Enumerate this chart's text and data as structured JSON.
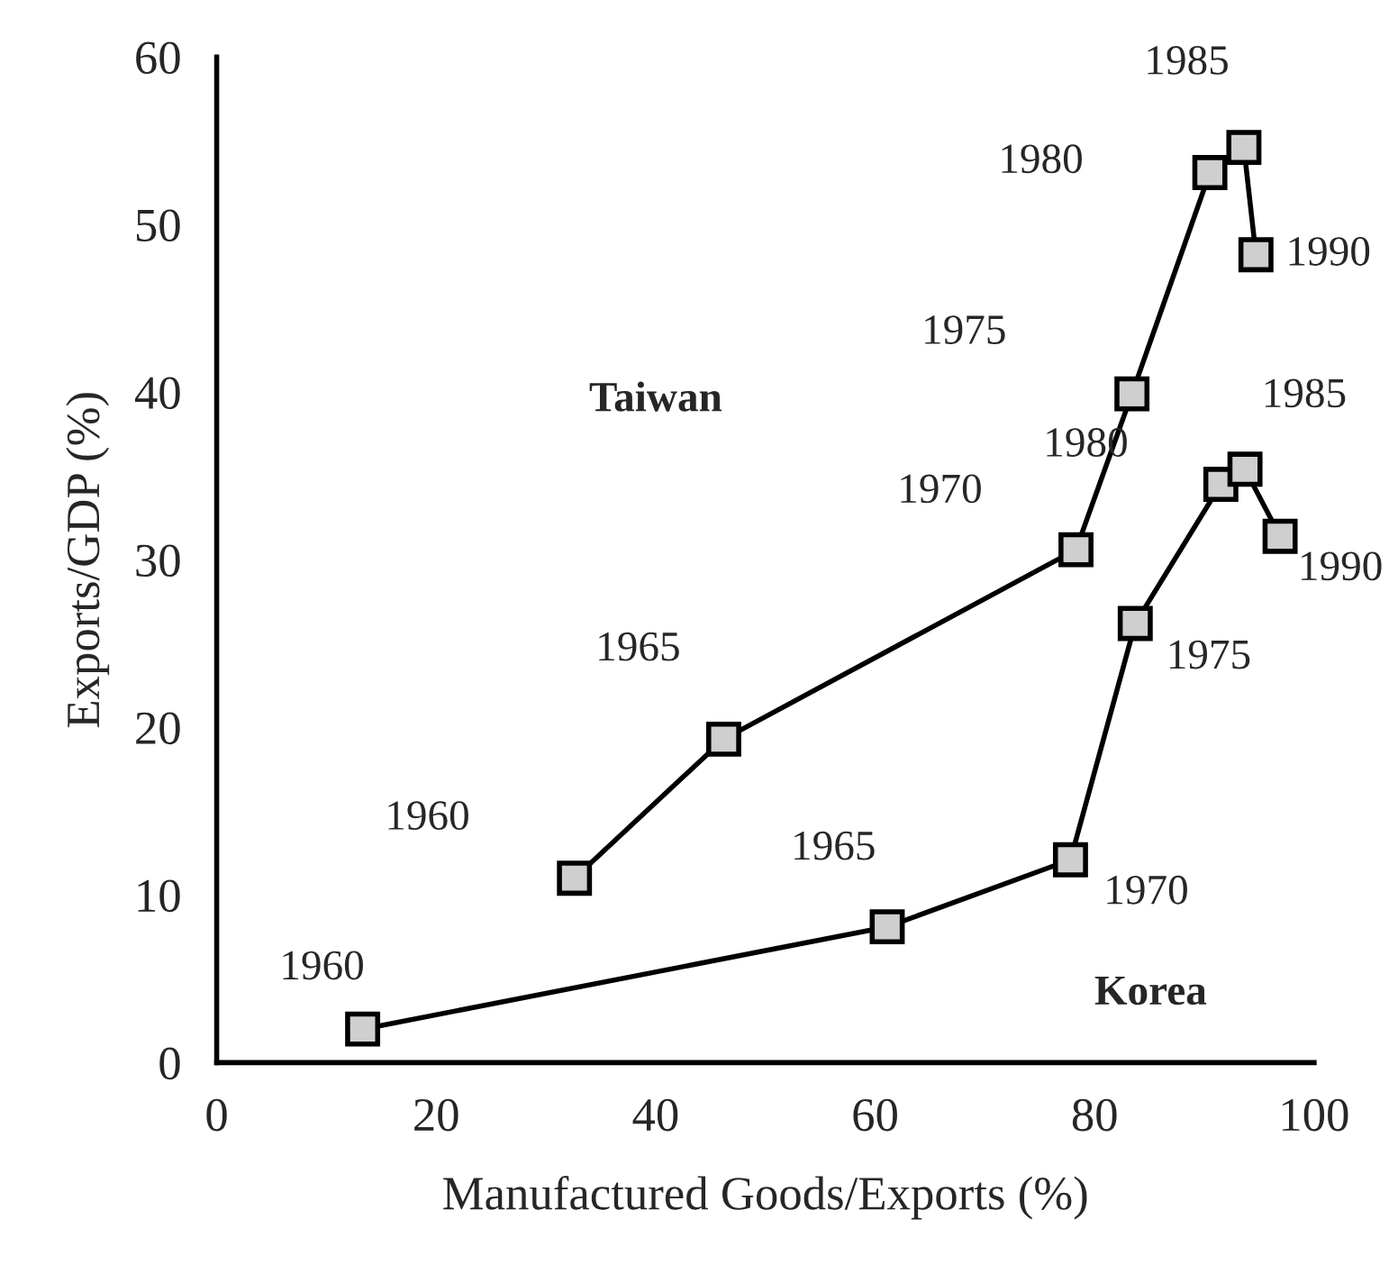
{
  "chart_data": {
    "type": "line",
    "xlabel": "Manufactured Goods/Exports (%)",
    "ylabel": "Exports/GDP (%)",
    "xlim": [
      0,
      100
    ],
    "ylim": [
      0,
      60
    ],
    "xticks": [
      0,
      20,
      40,
      60,
      80,
      100
    ],
    "yticks": [
      0,
      10,
      20,
      30,
      40,
      50,
      60
    ],
    "grid": false,
    "legend": false,
    "marker": "square",
    "line_style": "solid",
    "series": [
      {
        "color": "#000000",
        "x": [
          32.6,
          46.2,
          78.3,
          83.4,
          90.5,
          93.6,
          94.7
        ],
        "values": [
          11.0,
          19.3,
          30.6,
          39.9,
          53.1,
          54.6,
          48.2
        ]
      },
      {
        "color": "#000000",
        "x": [
          13.3,
          61.1,
          77.8,
          83.7,
          91.5,
          93.7,
          96.9
        ],
        "values": [
          2.0,
          8.1,
          12.1,
          26.2,
          34.5,
          35.4,
          31.4
        ]
      }
    ],
    "annotations": [
      "Taiwan",
      "Korea",
      "1960",
      "1965",
      "1970",
      "1975",
      "1980",
      "1985",
      "1990",
      "1960",
      "1965",
      "1970",
      "1975",
      "1980",
      "1985",
      "1990"
    ]
  }
}
